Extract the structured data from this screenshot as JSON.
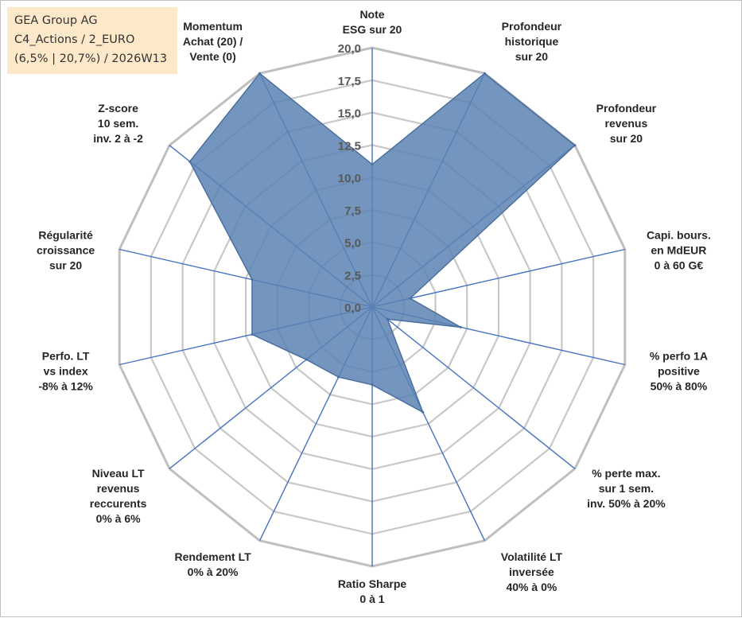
{
  "info": {
    "line1": "GEA Group AG",
    "line2": "C4_Actions / 2_EURO",
    "line3": "(6,5% | 20,7%) / 2026W13"
  },
  "chart_data": {
    "type": "radar",
    "title": "GEA Group AG",
    "r_range": [
      0,
      20
    ],
    "ticks": [
      "0,0",
      "2,5",
      "5,0",
      "7,5",
      "10,0",
      "12,5",
      "15,0",
      "17,5",
      "20,0"
    ],
    "axes": [
      [
        "Note",
        "ESG sur 20"
      ],
      [
        "Profondeur",
        "historique",
        "sur 20"
      ],
      [
        "Profondeur",
        "revenus",
        "sur 20"
      ],
      [
        "Capi. bours.",
        "en MdEUR",
        "0 à 60 G€"
      ],
      [
        "% perfo 1A",
        "positive",
        "50% à 80%"
      ],
      [
        "% perte max.",
        "sur 1 sem.",
        "inv. 50% à 20%"
      ],
      [
        "Volatilité LT",
        "inversée",
        "40% à 0%"
      ],
      [
        "Ratio Sharpe",
        "0 à 1"
      ],
      [
        "Rendement LT",
        "0% à 20%"
      ],
      [
        "Niveau LT",
        "revenus",
        "reccurents",
        "0% à 6%"
      ],
      [
        "Perfo. LT",
        "vs index",
        "-8% à 12%"
      ],
      [
        "Régularité",
        "croissance",
        "sur 20"
      ],
      [
        "Z-score",
        "10 sem.",
        "inv. 2 à -2"
      ],
      [
        "Momentum",
        "Achat (20) /",
        "Vente (0)"
      ]
    ],
    "series": [
      {
        "name": "GEA Group AG",
        "values": [
          11,
          20,
          20,
          3,
          7,
          1.5,
          9,
          6,
          6,
          6.5,
          9.5,
          9.5,
          18,
          20
        ]
      }
    ],
    "colors": {
      "fill": "#5b82b3",
      "stroke": "#4a6f9e",
      "axis": "#4472c4",
      "ring": "#c8c8c8",
      "outer_ring": "#bfbfbf",
      "info_bg": "#fde9c9"
    }
  }
}
